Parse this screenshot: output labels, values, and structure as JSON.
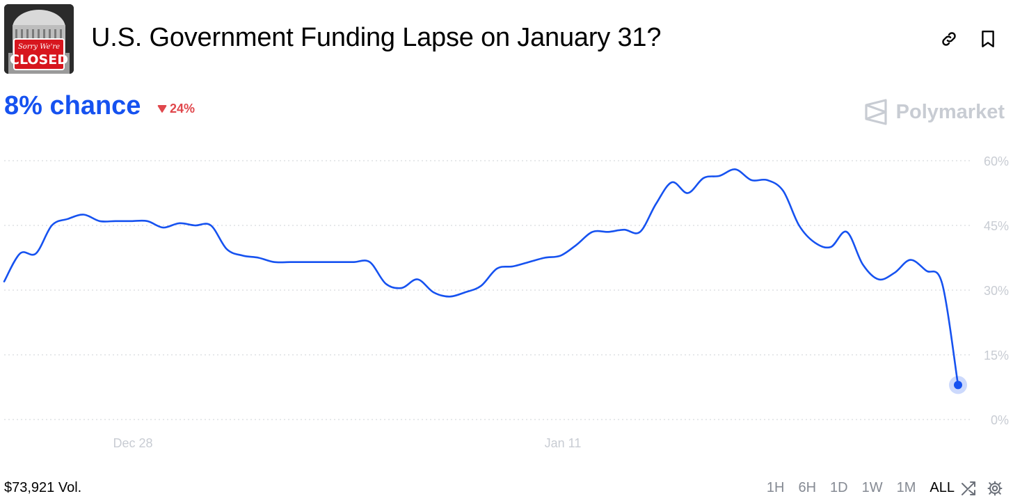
{
  "header": {
    "title": "U.S. Government Funding Lapse on January 31?",
    "thumbnail": {
      "sign_top": "Sorry We're",
      "sign_bottom": "CLOSED"
    }
  },
  "summary": {
    "chance_label": "8% chance",
    "delta_label": "24%",
    "delta_direction": "down",
    "brand": "Polymarket"
  },
  "footer": {
    "volume_label": "$73,921 Vol.",
    "ranges": [
      "1H",
      "6H",
      "1D",
      "1W",
      "1M",
      "ALL"
    ],
    "active_range": "ALL"
  },
  "colors": {
    "line": "#1652f0",
    "delta": "#e0474c",
    "muted": "#c8ccd3"
  },
  "chart_data": {
    "type": "line",
    "x_ticks": [
      "Dec 28",
      "Jan 11"
    ],
    "y_ticks": [
      "0%",
      "15%",
      "30%",
      "45%",
      "60%"
    ],
    "ylim": [
      0,
      60
    ],
    "grid": true,
    "series": [
      {
        "values": [
          32,
          38.5,
          38.5,
          45,
          46.5,
          47.5,
          46,
          46,
          46,
          46,
          44.5,
          45.5,
          45,
          45,
          39.5,
          38,
          37.5,
          36.5,
          36.5,
          36.5,
          36.5,
          36.5,
          36.5,
          36.5,
          31.5,
          30.5,
          32.5,
          29.5,
          28.5,
          29.5,
          31,
          35,
          35.5,
          36.5,
          37.5,
          38,
          40.5,
          43.5,
          43.5,
          44,
          43.5,
          50,
          55,
          52.5,
          56,
          56.5,
          58,
          55.5,
          55.5,
          53,
          45,
          41,
          40,
          43.5,
          36,
          32.5,
          34,
          37,
          34.5,
          31.5,
          8
        ]
      }
    ]
  }
}
